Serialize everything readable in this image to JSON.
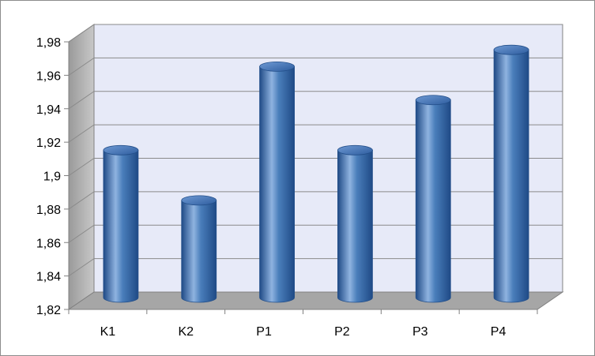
{
  "chart_data": {
    "type": "bar",
    "style": "3d-cylinder",
    "categories": [
      "K1",
      "K2",
      "P1",
      "P2",
      "P3",
      "P4"
    ],
    "values": [
      1.91,
      1.88,
      1.96,
      1.91,
      1.94,
      1.97
    ],
    "ylim": [
      1.82,
      1.98
    ],
    "ytick_values": [
      1.82,
      1.84,
      1.86,
      1.88,
      1.9,
      1.92,
      1.94,
      1.96,
      1.98
    ],
    "ytick_labels": [
      "1,82",
      "1,84",
      "1,86",
      "1,88",
      "1,9",
      "1,92",
      "1,94",
      "1,96",
      "1,98"
    ],
    "grid": true,
    "legend": "none",
    "colors": {
      "bar": "#4a7ebb",
      "bar_dark": "#1f4a86",
      "bar_light": "#8fb3e0",
      "back_wall": "#e7eaf8",
      "side_wall": "#b3b3b3",
      "floor": "#a6a6a6",
      "grid": "#8a8a8a",
      "axis": "#808080"
    }
  }
}
